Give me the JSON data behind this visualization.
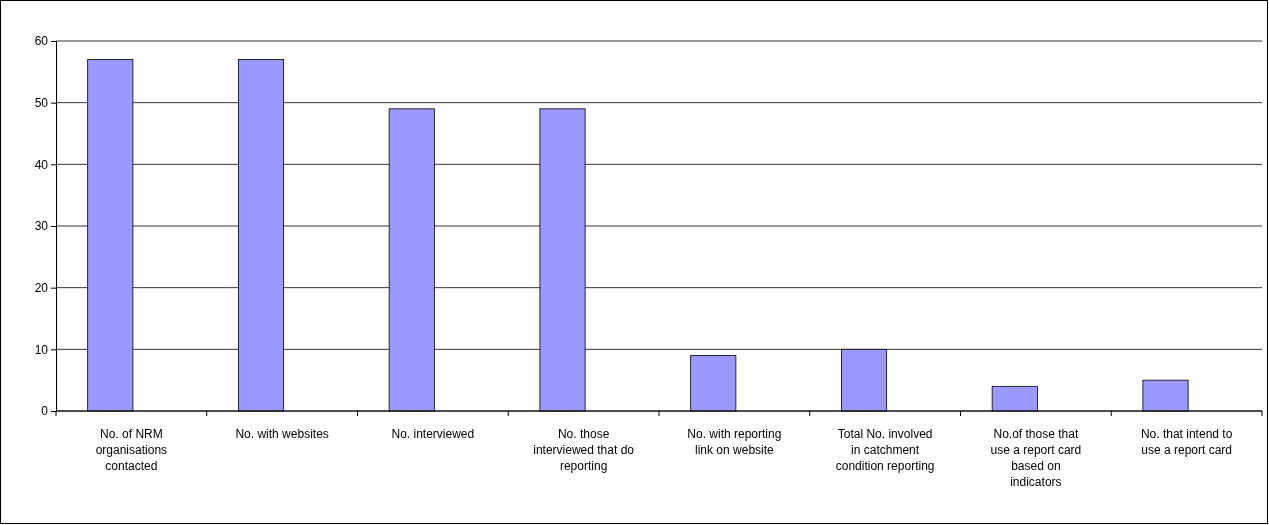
{
  "chart_data": {
    "type": "bar",
    "categories": [
      "No. of NRM organisations contacted",
      "No. with websites",
      "No. interviewed",
      "No. those interviewed that do reporting",
      "No. with reporting link on website",
      "Total No. involved in catchment condition reporting",
      "No.of those that use a report card based on indicators",
      "No. that intend to use a report card"
    ],
    "values": [
      57,
      57,
      49,
      49,
      9,
      10,
      4,
      5
    ],
    "color": "#9999ff",
    "ylim": [
      0,
      60
    ],
    "yticks": [
      0,
      10,
      20,
      30,
      40,
      50,
      60
    ],
    "grid": "y"
  }
}
